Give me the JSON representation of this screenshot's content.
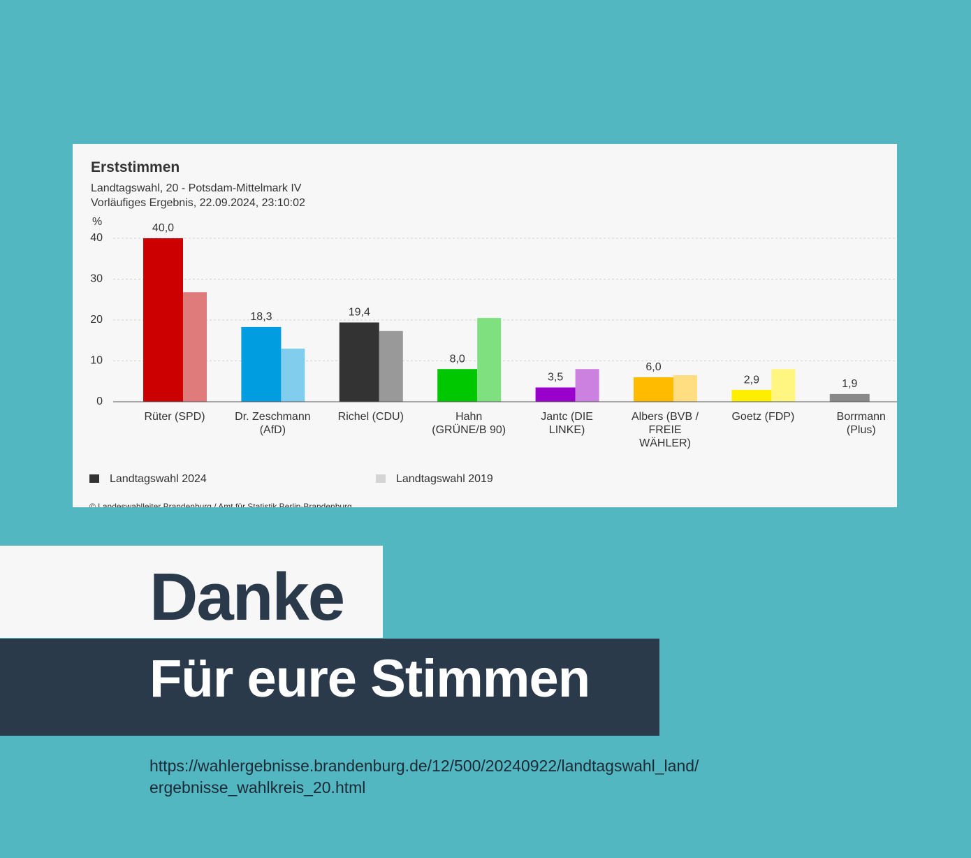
{
  "chart_data": {
    "type": "bar",
    "title": "Erststimmen",
    "subtitle": [
      "Landtagswahl, 20 - Potsdam-Mittelmark IV",
      "Vorläufiges Ergebnis, 22.09.2024, 23:10:02"
    ],
    "y_label": "%",
    "categories": [
      "Rüter (SPD)",
      "Dr. Zeschmann (AfD)",
      "Richel (CDU)",
      "Hahn (GRÜNE/B 90)",
      "Jantc (DIE LINKE)",
      "Albers (BVB / FREIE WÄHLER)",
      "Goetz (FDP)",
      "Borrmann (Plus)"
    ],
    "series": [
      {
        "name": "Landtagswahl 2024",
        "color": "#333333",
        "colors": [
          "#cc0000",
          "#009de0",
          "#333333",
          "#00c800",
          "#9900cc",
          "#ffbb00",
          "#ffee00",
          "#888888"
        ],
        "values": [
          40.0,
          18.3,
          19.4,
          8.0,
          3.5,
          6.0,
          2.9,
          1.9
        ],
        "value_labels": [
          "40,0",
          "18,3",
          "19,4",
          "8,0",
          "3,5",
          "6,0",
          "2,9",
          "1,9"
        ]
      },
      {
        "name": "Landtagswahl 2019",
        "color": "#d4d4d4",
        "colors": [
          "#e07b7b",
          "#80cdee",
          "#999999",
          "#7fe07f",
          "#cc80e0",
          "#ffdd80",
          "#fff580",
          null
        ],
        "values": [
          26.8,
          13.0,
          17.3,
          20.5,
          8.0,
          6.5,
          8.0,
          null
        ]
      }
    ],
    "ylim": [
      0,
      40
    ],
    "yticks": [
      0,
      10,
      20,
      30,
      40
    ],
    "grid": true,
    "source": "© Landeswahlleiter Brandenburg / Amt für Statistik Berlin-Brandenburg"
  },
  "banner": {
    "line1": "Danke",
    "line2": "Für eure Stimmen",
    "url_lines": [
      "https://wahlergebnisse.brandenburg.de/12/500/20240922/landtagswahl_land/",
      "ergebnisse_wahlkreis_20.html"
    ]
  }
}
